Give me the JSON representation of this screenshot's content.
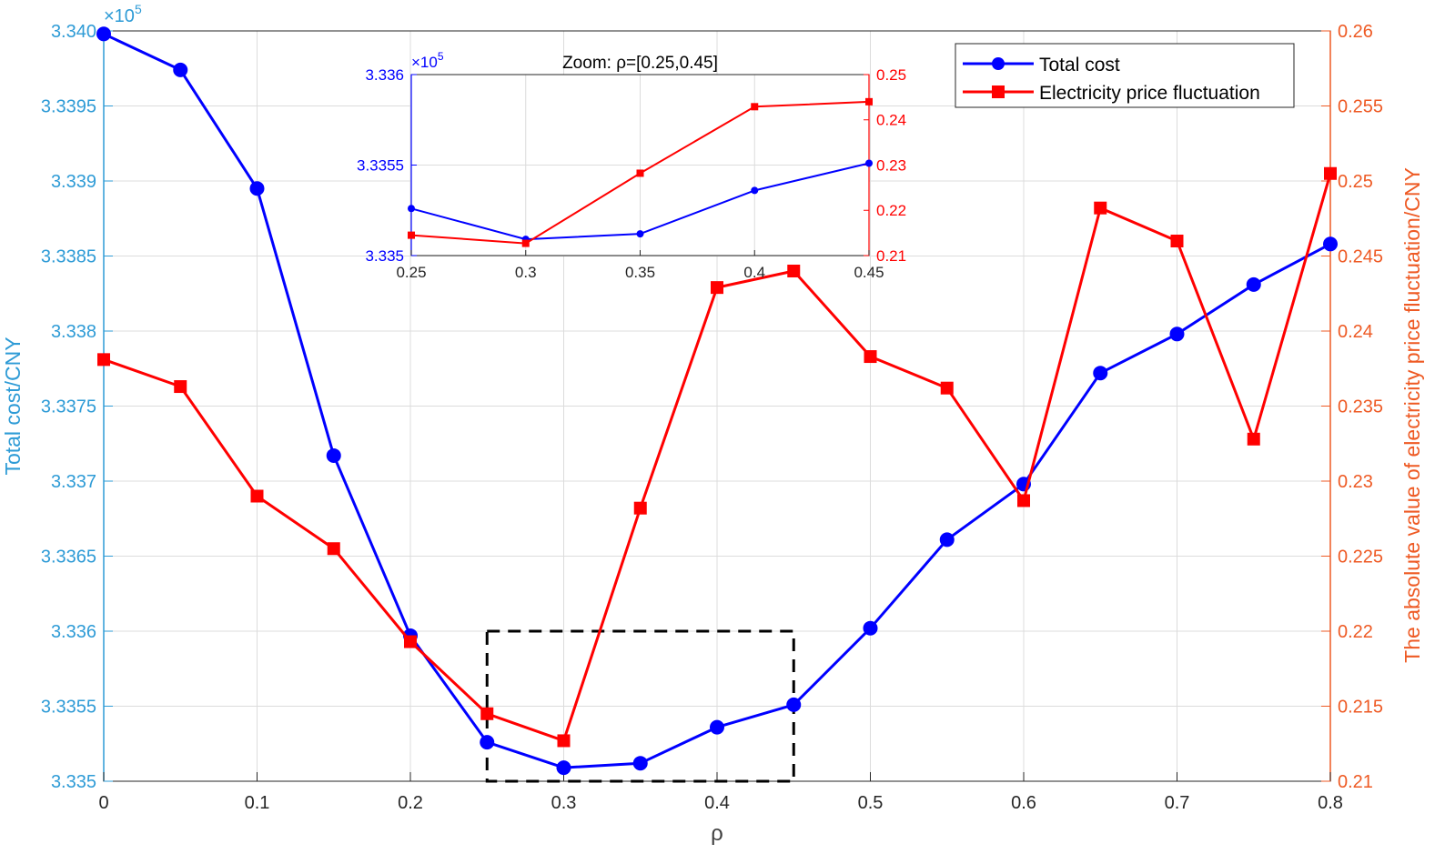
{
  "colors": {
    "left_axis": "#2e9bd6",
    "right_axis": "#ee5a24",
    "total_cost_series": "#0000ff",
    "price_series": "#ff0000",
    "grid": "#dcdcdc",
    "zoom_box": "#000000"
  },
  "chart_data": [
    {
      "type": "line",
      "title": "",
      "xlabel": "ρ",
      "ylabel_left": "Total cost/CNY",
      "ylabel_right": "The absolute value of electricity price fluctuation/CNY",
      "xlim": [
        0,
        0.8
      ],
      "ylim_left": [
        333500,
        334000
      ],
      "ylim_right": [
        0.21,
        0.26
      ],
      "left_exponent_label": "×10",
      "left_exponent_power": "5",
      "x_ticks": [
        "0",
        "0.1",
        "0.2",
        "0.3",
        "0.4",
        "0.5",
        "0.6",
        "0.7",
        "0.8"
      ],
      "y_left_ticks": [
        "3.335",
        "3.3355",
        "3.336",
        "3.3365",
        "3.337",
        "3.3375",
        "3.338",
        "3.3385",
        "3.339",
        "3.3395",
        "3.340"
      ],
      "y_right_ticks": [
        "0.21",
        "0.215",
        "0.22",
        "0.225",
        "0.23",
        "0.235",
        "0.24",
        "0.245",
        "0.25",
        "0.255",
        "0.26"
      ],
      "grid": true,
      "legend_position": "top-right",
      "x": [
        0,
        0.05,
        0.1,
        0.15,
        0.2,
        0.25,
        0.3,
        0.35,
        0.4,
        0.45,
        0.5,
        0.55,
        0.6,
        0.65,
        0.7,
        0.75,
        0.8
      ],
      "series": [
        {
          "name": "Total cost",
          "axis": "left",
          "marker": "circle",
          "values": [
            333998,
            333974,
            333895,
            333717,
            333597,
            333526,
            333509,
            333512,
            333536,
            333551,
            333602,
            333661,
            333698,
            333772,
            333798,
            333831,
            333858
          ]
        },
        {
          "name": "Electricity price fluctuation",
          "axis": "right",
          "marker": "square",
          "values": [
            0.2381,
            0.2363,
            0.229,
            0.2255,
            0.2193,
            0.2145,
            0.2127,
            0.2282,
            0.2429,
            0.244,
            0.2383,
            0.2362,
            0.2287,
            0.2482,
            0.246,
            0.2328,
            0.2505
          ]
        }
      ],
      "zoom_box": {
        "x_range": [
          0.25,
          0.45
        ],
        "y_left_range": [
          333500,
          333600
        ]
      }
    },
    {
      "type": "line",
      "title": "Zoom: ρ=[0.25,0.45]",
      "xlim": [
        0.25,
        0.45
      ],
      "ylim_left": [
        333500,
        333600
      ],
      "ylim_right": [
        0.21,
        0.25
      ],
      "left_exponent_label": "×10",
      "left_exponent_power": "5",
      "x_ticks": [
        "0.25",
        "0.3",
        "0.35",
        "0.4",
        "0.45"
      ],
      "y_left_ticks": [
        "3.335",
        "3.3355",
        "3.336"
      ],
      "y_right_ticks": [
        "0.21",
        "0.22",
        "0.23",
        "0.24",
        "0.25"
      ],
      "grid": true,
      "x": [
        0.25,
        0.3,
        0.35,
        0.4,
        0.45
      ],
      "series": [
        {
          "name": "Total cost",
          "axis": "left",
          "marker": "dot",
          "values": [
            333526,
            333509,
            333512,
            333536,
            333551
          ]
        },
        {
          "name": "Electricity price fluctuation",
          "axis": "right",
          "marker": "square",
          "values": [
            0.2145,
            0.2127,
            0.2282,
            0.2429,
            0.244
          ]
        }
      ]
    }
  ]
}
